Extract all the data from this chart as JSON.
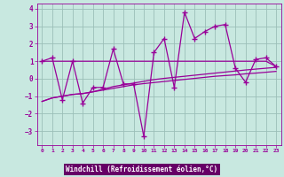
{
  "xlabel": "Windchill (Refroidissement éolien,°C)",
  "background_color": "#c8e8e0",
  "grid_color": "#9bbfb8",
  "line_color": "#990099",
  "xlabel_bg": "#660066",
  "xlabel_fg": "#ffffff",
  "x_values": [
    0,
    1,
    2,
    3,
    4,
    5,
    6,
    7,
    8,
    9,
    10,
    11,
    12,
    13,
    14,
    15,
    16,
    17,
    18,
    19,
    20,
    21,
    22,
    23
  ],
  "y_main": [
    1.0,
    1.2,
    -1.2,
    1.0,
    -1.4,
    -0.5,
    -0.5,
    1.7,
    -0.3,
    -0.3,
    -3.3,
    1.5,
    2.3,
    -0.5,
    3.8,
    2.3,
    2.7,
    3.0,
    3.1,
    0.6,
    -0.2,
    1.1,
    1.2,
    0.7
  ],
  "y_trend1": [
    1.0,
    1.0,
    1.0,
    1.0,
    1.0,
    1.0,
    1.0,
    1.0,
    1.0,
    1.0,
    1.0,
    1.0,
    1.0,
    1.0,
    1.0,
    1.0,
    1.0,
    1.0,
    1.0,
    1.0,
    1.0,
    1.0,
    1.0,
    0.7
  ],
  "y_trend2": [
    -1.3,
    -1.1,
    -1.0,
    -0.9,
    -0.85,
    -0.75,
    -0.65,
    -0.55,
    -0.45,
    -0.35,
    -0.28,
    -0.22,
    -0.16,
    -0.1,
    -0.04,
    0.02,
    0.08,
    0.14,
    0.18,
    0.22,
    0.28,
    0.32,
    0.37,
    0.42
  ],
  "y_trend3": [
    -1.3,
    -1.1,
    -1.0,
    -0.9,
    -0.85,
    -0.75,
    -0.6,
    -0.45,
    -0.35,
    -0.25,
    -0.15,
    -0.05,
    0.02,
    0.08,
    0.14,
    0.2,
    0.26,
    0.32,
    0.38,
    0.44,
    0.5,
    0.55,
    0.6,
    0.65
  ],
  "ylim": [
    -3.8,
    4.3
  ],
  "xlim": [
    -0.5,
    23.5
  ],
  "yticks": [
    -3,
    -2,
    -1,
    0,
    1,
    2,
    3,
    4
  ],
  "xticks": [
    0,
    1,
    2,
    3,
    4,
    5,
    6,
    7,
    8,
    9,
    10,
    11,
    12,
    13,
    14,
    15,
    16,
    17,
    18,
    19,
    20,
    21,
    22,
    23
  ]
}
